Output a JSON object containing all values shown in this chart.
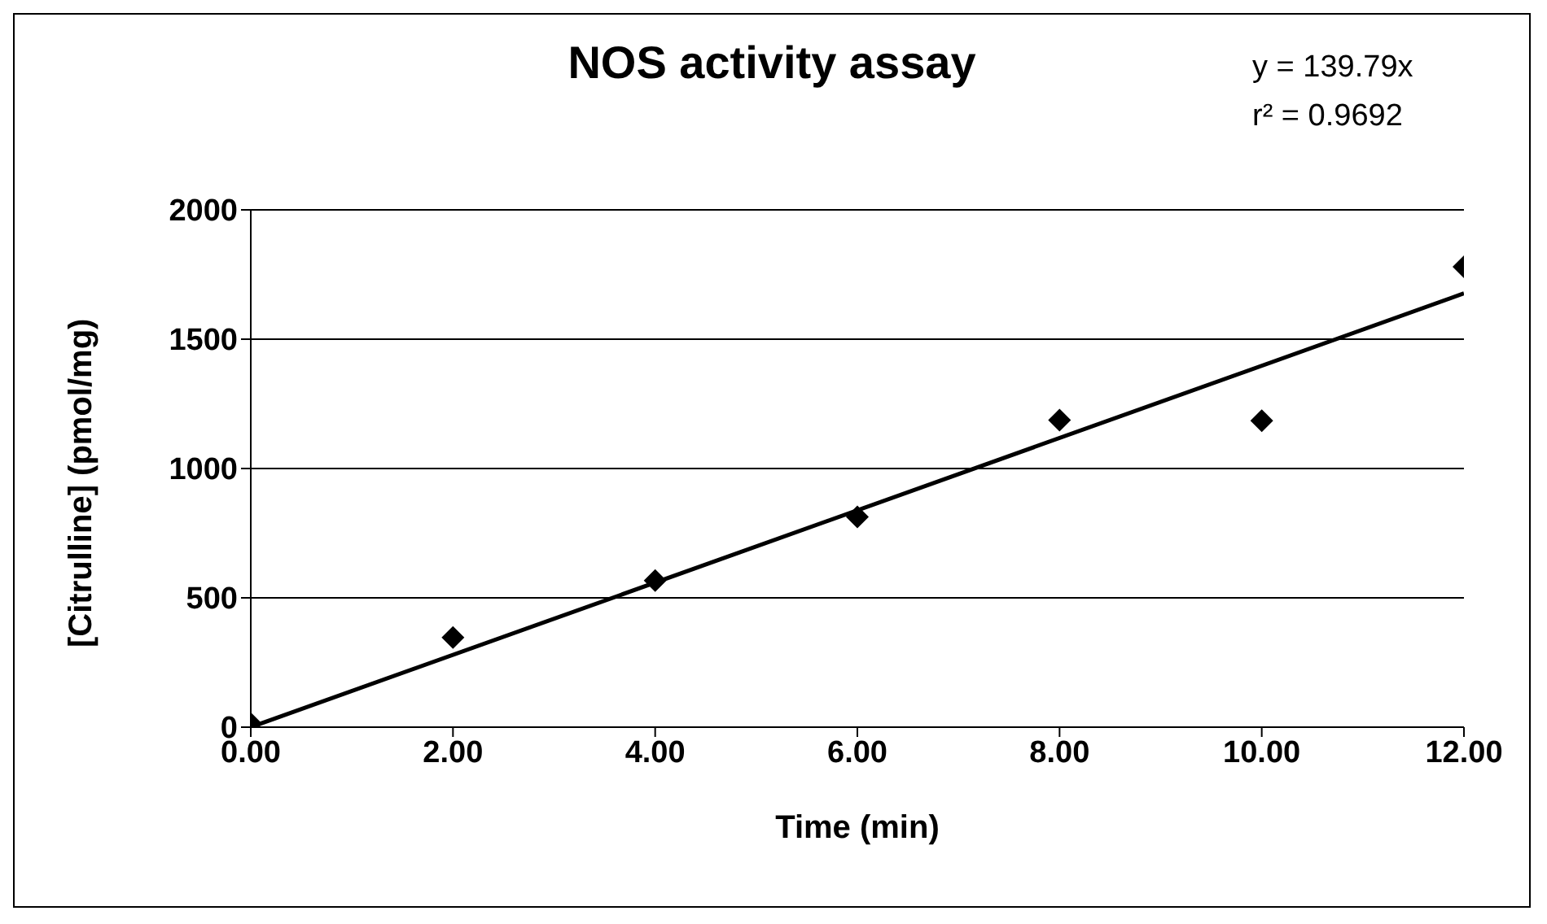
{
  "chart_data": {
    "type": "scatter",
    "title": "NOS activity assay",
    "xlabel": "Time (min)",
    "ylabel": "[Citrulline] (pmol/mg)",
    "x": [
      0,
      2,
      4,
      6,
      8,
      10,
      12
    ],
    "series": [
      {
        "color": "#000000",
        "values": [
          13,
          347,
          567,
          813,
          1187,
          1185,
          1780
        ],
        "marker": "diamond"
      },
      {
        "type": "line",
        "color": "#000000",
        "x": [
          0,
          12
        ],
        "values": [
          0,
          1677
        ],
        "marker": "none"
      }
    ],
    "annotations": [
      "y = 139.79x",
      "r² = 0.9692"
    ],
    "xlim": [
      0,
      12
    ],
    "xticks": [
      {
        "value": 0,
        "label": "0.00"
      },
      {
        "value": 2,
        "label": "2.00"
      },
      {
        "value": 4,
        "label": "4.00"
      },
      {
        "value": 6,
        "label": "6.00"
      },
      {
        "value": 8,
        "label": "8.00"
      },
      {
        "value": 10,
        "label": "10.00"
      },
      {
        "value": 12,
        "label": "12.00"
      }
    ],
    "ylim": [
      0,
      2000
    ],
    "yticks": [
      0,
      500,
      1000,
      1500,
      2000
    ],
    "grid": "y",
    "legend": false
  }
}
